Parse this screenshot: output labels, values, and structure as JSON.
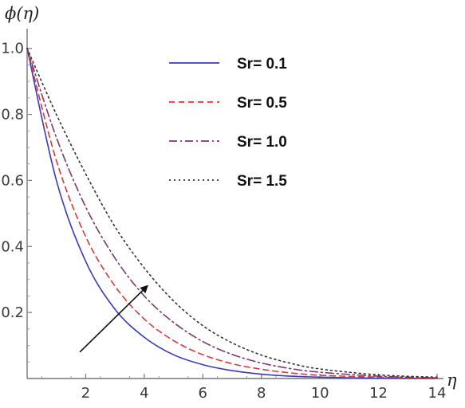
{
  "chart_data": {
    "type": "line",
    "xlabel": "η",
    "ylabel": "ϕ(η)",
    "xlim": [
      0,
      14
    ],
    "ylim": [
      0,
      1.05
    ],
    "xticks": [
      2,
      4,
      6,
      8,
      10,
      12,
      14
    ],
    "yticks": [
      0.2,
      0.4,
      0.6,
      0.8,
      1.0
    ],
    "x_tick_labels": [
      "2",
      "4",
      "6",
      "8",
      "10",
      "12",
      "14"
    ],
    "y_tick_labels": [
      "0.2",
      "0.4",
      "0.6",
      "0.8",
      "1.0"
    ],
    "grid": false,
    "legend_position": "top-right",
    "series": [
      {
        "name": "Sr= 0.1",
        "color": "#3a3ab8",
        "dash": "solid",
        "x": [
          0,
          1,
          2,
          3,
          4,
          5,
          6,
          7,
          8,
          9,
          10,
          12,
          14
        ],
        "y": [
          1.0,
          0.6,
          0.355,
          0.21,
          0.125,
          0.072,
          0.042,
          0.024,
          0.013,
          0.007,
          0.004,
          0.001,
          0.0
        ]
      },
      {
        "name": "Sr= 0.5",
        "color": "#d63a3a",
        "dash": "dashed",
        "x": [
          0,
          1,
          2,
          3,
          4,
          5,
          6,
          7,
          8,
          9,
          10,
          12,
          14
        ],
        "y": [
          1.0,
          0.66,
          0.43,
          0.28,
          0.18,
          0.115,
          0.072,
          0.045,
          0.028,
          0.017,
          0.01,
          0.004,
          0.001
        ]
      },
      {
        "name": "Sr= 1.0",
        "color": "#7a3a6a",
        "dash": "dashdot",
        "x": [
          0,
          1,
          2,
          3,
          4,
          5,
          6,
          7,
          8,
          9,
          10,
          12,
          14
        ],
        "y": [
          1.0,
          0.73,
          0.52,
          0.365,
          0.25,
          0.17,
          0.112,
          0.073,
          0.047,
          0.03,
          0.019,
          0.007,
          0.002
        ]
      },
      {
        "name": "Sr= 1.5",
        "color": "#333333",
        "dash": "dotted",
        "x": [
          0,
          1,
          2,
          3,
          4,
          5,
          6,
          7,
          8,
          9,
          10,
          12,
          14
        ],
        "y": [
          1.0,
          0.8,
          0.62,
          0.46,
          0.335,
          0.235,
          0.16,
          0.108,
          0.071,
          0.046,
          0.029,
          0.011,
          0.004
        ]
      }
    ],
    "annotations": [
      {
        "type": "arrow",
        "from": [
          1.8,
          0.08
        ],
        "to": [
          4.1,
          0.28
        ],
        "meaning": "increasing Sr"
      }
    ]
  }
}
